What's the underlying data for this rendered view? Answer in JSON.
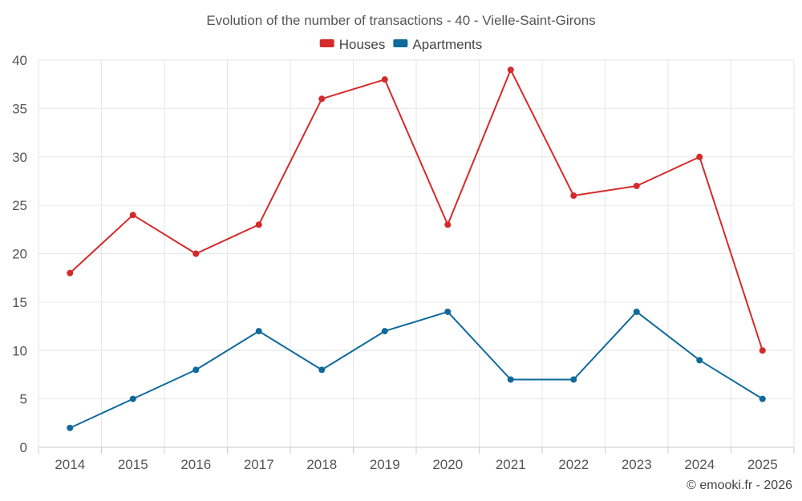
{
  "chart_data": {
    "type": "line",
    "title": "Evolution of the number of transactions - 40 - Vielle-Saint-Girons",
    "categories": [
      "2014",
      "2015",
      "2016",
      "2017",
      "2018",
      "2019",
      "2020",
      "2021",
      "2022",
      "2023",
      "2024",
      "2025"
    ],
    "series": [
      {
        "name": "Houses",
        "color": "#d42a2a",
        "values": [
          18,
          24,
          20,
          23,
          36,
          38,
          23,
          39,
          26,
          27,
          30,
          10
        ]
      },
      {
        "name": "Apartments",
        "color": "#0f6a9c",
        "values": [
          2,
          5,
          8,
          12,
          8,
          12,
          14,
          7,
          7,
          14,
          9,
          5
        ]
      }
    ],
    "ylim": [
      0,
      40
    ],
    "yticks": [
      0,
      5,
      10,
      15,
      20,
      25,
      30,
      35,
      40
    ],
    "xlabel": "",
    "ylabel": "",
    "grid": true,
    "legend": "top-center"
  },
  "credit": "© emooki.fr - 2026"
}
